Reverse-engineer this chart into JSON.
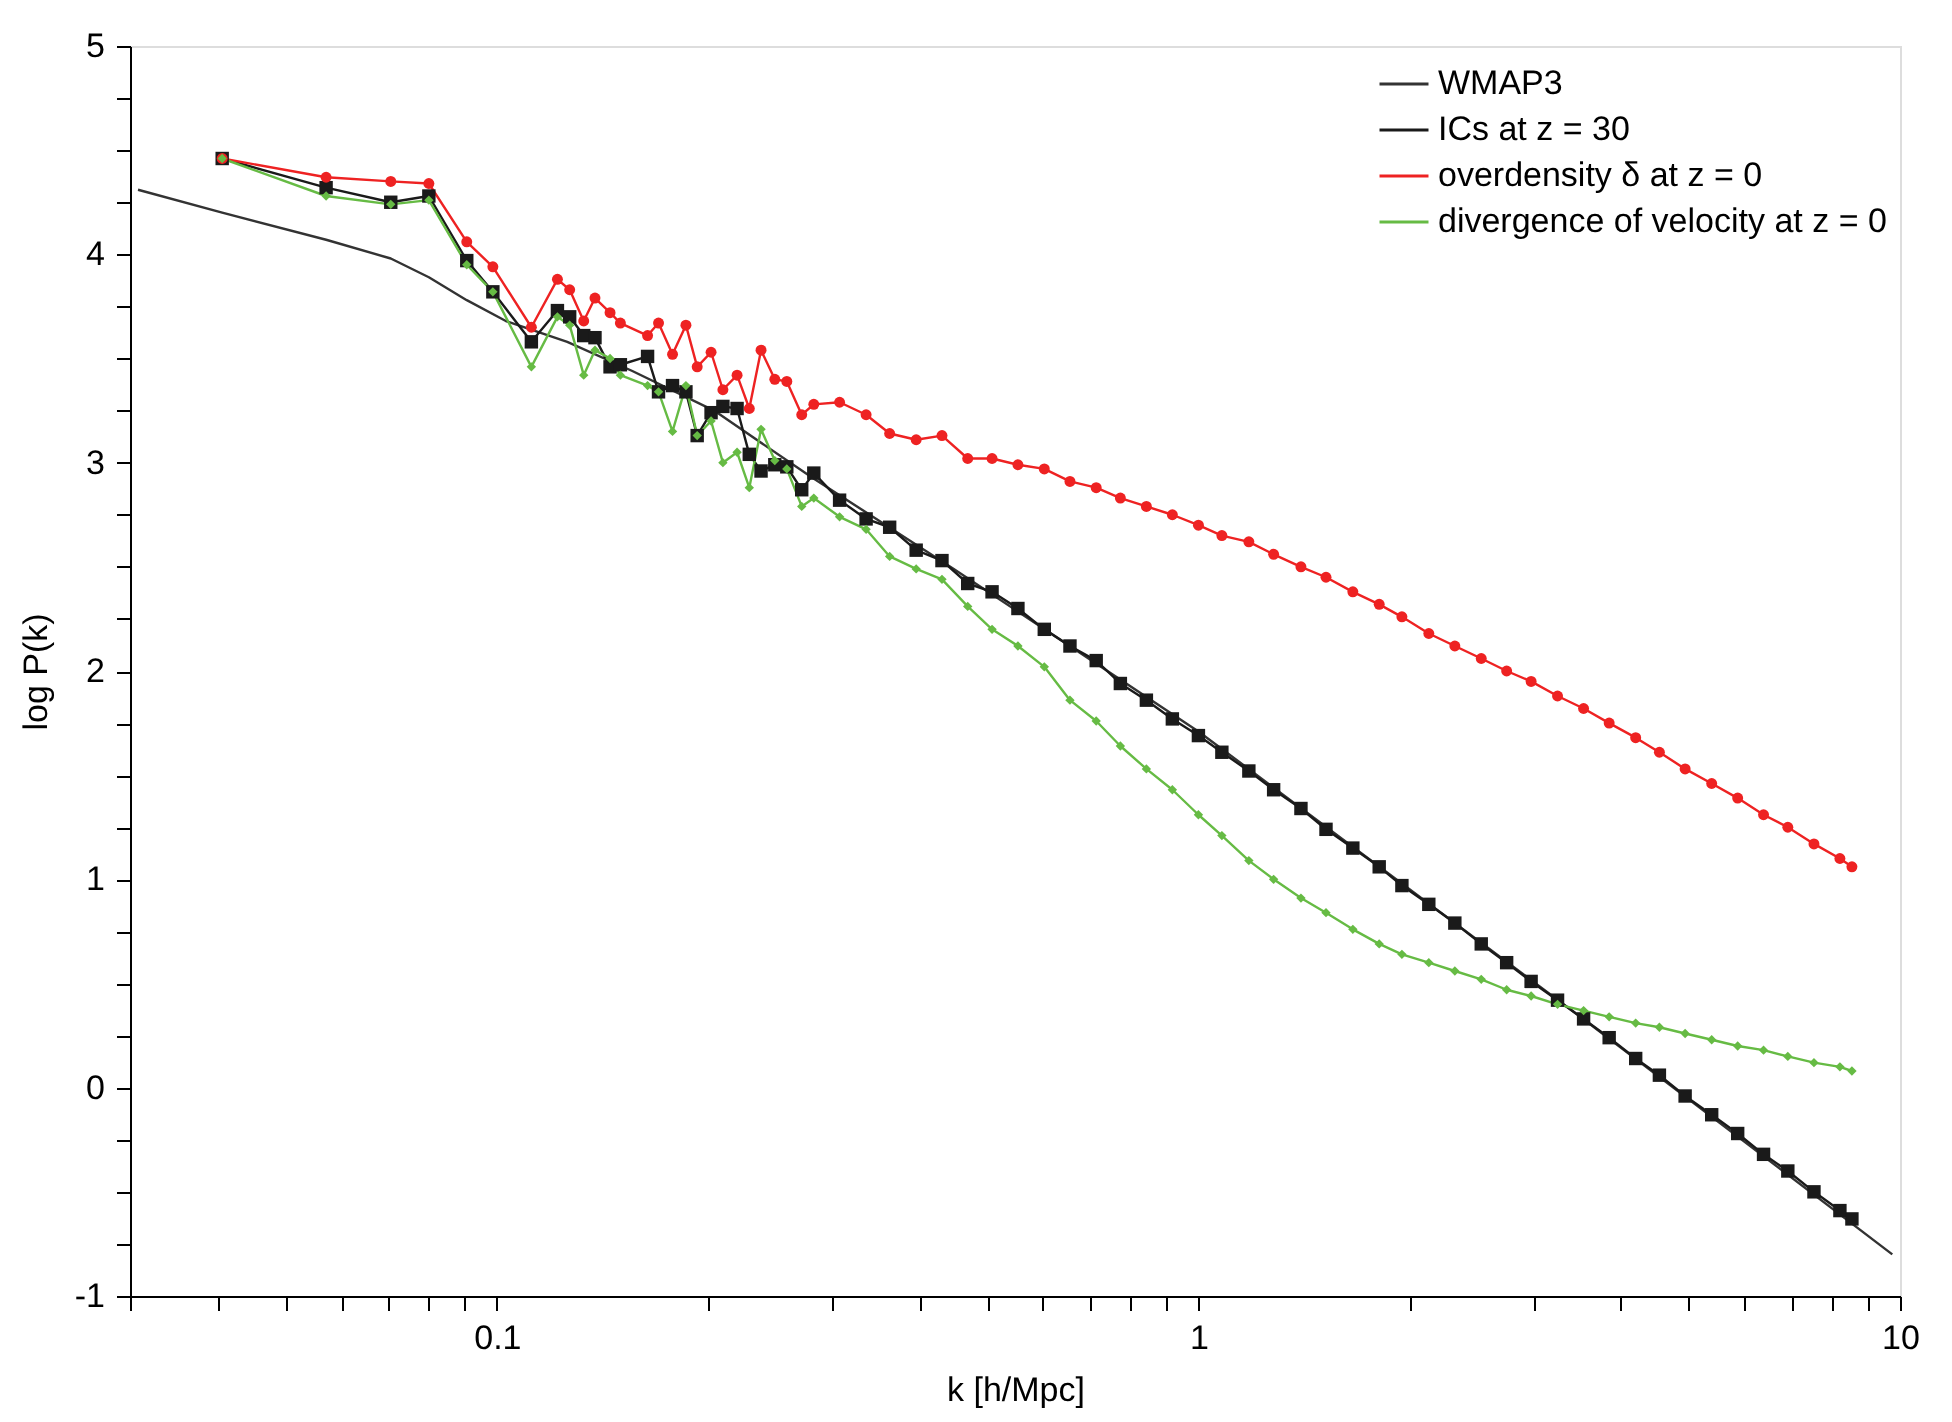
{
  "chart_data": {
    "type": "line",
    "xlabel": "k [h/Mpc]",
    "ylabel": "log P(k)",
    "log": "x",
    "grid": false,
    "legend": "top right",
    "xlim": [
      0.03,
      10
    ],
    "ylim": [
      -1,
      5
    ],
    "xticks": [
      {
        "value": 0.03,
        "label": null
      },
      {
        "value": 0.04,
        "label": null
      },
      {
        "value": 0.05,
        "label": null
      },
      {
        "value": 0.06,
        "label": null
      },
      {
        "value": 0.07,
        "label": null
      },
      {
        "value": 0.08,
        "label": null
      },
      {
        "value": 0.09,
        "label": null
      },
      0.1,
      {
        "value": 0.2,
        "label": null
      },
      {
        "value": 0.3,
        "label": null
      },
      {
        "value": 0.4,
        "label": null
      },
      {
        "value": 0.5,
        "label": null
      },
      {
        "value": 0.6,
        "label": null
      },
      {
        "value": 0.7,
        "label": null
      },
      {
        "value": 0.8,
        "label": null
      },
      {
        "value": 0.9,
        "label": null
      },
      1,
      {
        "value": 2,
        "label": null
      },
      {
        "value": 3,
        "label": null
      },
      {
        "value": 4,
        "label": null
      },
      {
        "value": 5,
        "label": null
      },
      {
        "value": 6,
        "label": null
      },
      {
        "value": 7,
        "label": null
      },
      {
        "value": 8,
        "label": null
      },
      {
        "value": 9,
        "label": null
      },
      10
    ],
    "yticks": [
      -1,
      {
        "value": -0.75,
        "label": null
      },
      {
        "value": -0.5,
        "label": null
      },
      {
        "value": -0.25,
        "label": null
      },
      0,
      {
        "value": 0.25,
        "label": null
      },
      {
        "value": 0.5,
        "label": null
      },
      {
        "value": 0.75,
        "label": null
      },
      1,
      {
        "value": 1.25,
        "label": null
      },
      {
        "value": 1.5,
        "label": null
      },
      {
        "value": 1.75,
        "label": null
      },
      2,
      {
        "value": 2.25,
        "label": null
      },
      {
        "value": 2.5,
        "label": null
      },
      {
        "value": 2.75,
        "label": null
      },
      3,
      {
        "value": 3.25,
        "label": null
      },
      {
        "value": 3.5,
        "label": null
      },
      {
        "value": 3.75,
        "label": null
      },
      4,
      {
        "value": 4.25,
        "label": null
      },
      {
        "value": 4.5,
        "label": null
      },
      {
        "value": 4.75,
        "label": null
      },
      5
    ],
    "x": [
      0.0406,
      0.0571,
      0.0706,
      0.08,
      0.0906,
      0.0987,
      0.112,
      0.122,
      0.127,
      0.133,
      0.138,
      0.145,
      0.15,
      0.164,
      0.17,
      0.178,
      0.186,
      0.193,
      0.202,
      0.21,
      0.22,
      0.229,
      0.238,
      0.249,
      0.259,
      0.272,
      0.283,
      0.308,
      0.336,
      0.363,
      0.396,
      0.431,
      0.469,
      0.508,
      0.553,
      0.603,
      0.656,
      0.715,
      0.774,
      0.843,
      0.918,
      1.0,
      1.08,
      1.18,
      1.28,
      1.4,
      1.52,
      1.66,
      1.81,
      1.95,
      2.13,
      2.32,
      2.53,
      2.75,
      2.98,
      3.25,
      3.54,
      3.85,
      4.2,
      4.54,
      4.94,
      5.39,
      5.87,
      6.39,
      6.92,
      7.54,
      8.21,
      8.54
    ],
    "series": [
      {
        "name": "WMAP3",
        "color": "#333333",
        "marker": "none",
        "x": [
          0.0308,
          0.0406,
          0.0571,
          0.0706,
          0.08,
          0.0906,
          0.103,
          0.126,
          0.156,
          0.204,
          0.281,
          0.448,
          1.0,
          3.44,
          9.75
        ],
        "values": [
          4.31,
          4.2,
          4.07,
          3.98,
          3.89,
          3.78,
          3.68,
          3.58,
          3.44,
          3.25,
          2.93,
          2.49,
          1.71,
          0.36,
          -0.8
        ]
      },
      {
        "name": "ICs at z = 30",
        "color": "#1a1a1a",
        "marker": "square",
        "values": [
          4.46,
          4.32,
          4.25,
          4.28,
          3.97,
          3.82,
          3.58,
          3.73,
          3.7,
          3.61,
          3.6,
          3.46,
          3.47,
          3.51,
          3.34,
          3.37,
          3.34,
          3.13,
          3.24,
          3.27,
          3.26,
          3.04,
          2.96,
          2.99,
          2.98,
          2.87,
          2.95,
          2.82,
          2.73,
          2.69,
          2.58,
          2.53,
          2.42,
          2.38,
          2.3,
          2.2,
          2.12,
          2.05,
          1.94,
          1.86,
          1.77,
          1.69,
          1.61,
          1.52,
          1.43,
          1.34,
          1.24,
          1.15,
          1.06,
          0.97,
          0.88,
          0.79,
          0.69,
          0.6,
          0.51,
          0.42,
          0.33,
          0.24,
          0.14,
          0.06,
          -0.04,
          -0.13,
          -0.22,
          -0.32,
          -0.4,
          -0.5,
          -0.59,
          -0.63
        ]
      },
      {
        "name": "overdensity δ at z = 0",
        "color": "#ee2222",
        "marker": "circle",
        "values": [
          4.46,
          4.37,
          4.35,
          4.34,
          4.06,
          3.94,
          3.65,
          3.88,
          3.83,
          3.68,
          3.79,
          3.72,
          3.67,
          3.61,
          3.67,
          3.52,
          3.66,
          3.46,
          3.53,
          3.35,
          3.42,
          3.26,
          3.54,
          3.4,
          3.39,
          3.23,
          3.28,
          3.29,
          3.23,
          3.14,
          3.11,
          3.13,
          3.02,
          3.02,
          2.99,
          2.97,
          2.91,
          2.88,
          2.83,
          2.79,
          2.75,
          2.7,
          2.65,
          2.62,
          2.56,
          2.5,
          2.45,
          2.38,
          2.32,
          2.26,
          2.18,
          2.12,
          2.06,
          2.0,
          1.95,
          1.88,
          1.82,
          1.75,
          1.68,
          1.61,
          1.53,
          1.46,
          1.39,
          1.31,
          1.25,
          1.17,
          1.1,
          1.06
        ]
      },
      {
        "name": "divergence of velocity at z = 0",
        "color": "#66bb44",
        "marker": "diamond",
        "values": [
          4.46,
          4.28,
          4.24,
          4.26,
          3.95,
          3.82,
          3.46,
          3.7,
          3.66,
          3.42,
          3.54,
          3.5,
          3.42,
          3.37,
          3.34,
          3.15,
          3.37,
          3.13,
          3.2,
          3.0,
          3.05,
          2.88,
          3.16,
          3.01,
          2.97,
          2.79,
          2.83,
          2.74,
          2.68,
          2.55,
          2.49,
          2.44,
          2.31,
          2.2,
          2.12,
          2.02,
          1.86,
          1.76,
          1.64,
          1.53,
          1.43,
          1.31,
          1.21,
          1.09,
          1.0,
          0.91,
          0.84,
          0.76,
          0.69,
          0.64,
          0.6,
          0.56,
          0.52,
          0.47,
          0.44,
          0.4,
          0.37,
          0.34,
          0.31,
          0.29,
          0.26,
          0.23,
          0.2,
          0.18,
          0.15,
          0.12,
          0.1,
          0.08
        ]
      }
    ]
  }
}
